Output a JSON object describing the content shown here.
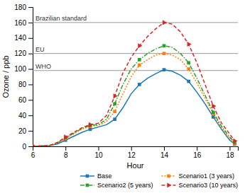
{
  "chart_data": {
    "type": "line",
    "xlabel": "Hour",
    "ylabel": "Ozone / ppb",
    "xlim": [
      6,
      18.5
    ],
    "ylim": [
      0,
      180
    ],
    "xticks": [
      6,
      8,
      10,
      12,
      14,
      16,
      18
    ],
    "yticks": [
      0,
      20,
      40,
      60,
      80,
      100,
      120,
      140,
      160,
      180
    ],
    "legend": "lower right",
    "reference_lines": [
      {
        "value": 160,
        "label": "Brazilian standard"
      },
      {
        "value": 120,
        "label": "EU"
      },
      {
        "value": 98,
        "label": "WHO"
      }
    ],
    "x": [
      6,
      7,
      7.5,
      8,
      8.5,
      9,
      9.5,
      10,
      10.5,
      11,
      11.5,
      12,
      12.5,
      13,
      13.5,
      14,
      14.5,
      15,
      15.5,
      16,
      16.5,
      17,
      17.5,
      18,
      18.3
    ],
    "series": [
      {
        "name": "Base",
        "line_style": "solid",
        "marker": "square",
        "values": [
          0,
          1,
          3,
          8,
          13,
          18,
          22,
          25,
          28,
          35,
          50,
          68,
          80,
          88,
          94,
          99,
          97,
          92,
          84,
          70,
          55,
          38,
          22,
          8,
          3
        ]
      },
      {
        "name": "Scenario1 (3 years)",
        "line_style": "dotted",
        "marker": "square",
        "values": [
          0,
          1,
          4,
          10,
          16,
          22,
          26,
          27,
          32,
          45,
          68,
          90,
          105,
          112,
          118,
          120,
          118,
          112,
          100,
          82,
          62,
          42,
          24,
          10,
          4
        ]
      },
      {
        "name": "Scenario2 (5 years)",
        "line_style": "dashdot",
        "marker": "square",
        "values": [
          0,
          1,
          4,
          11,
          17,
          23,
          27,
          28,
          35,
          55,
          80,
          100,
          112,
          120,
          126,
          130,
          128,
          120,
          108,
          88,
          66,
          44,
          26,
          12,
          5
        ]
      },
      {
        "name": "Scenario3 (10 years)",
        "line_style": "dashed",
        "marker": "triangle-right",
        "values": [
          0,
          1,
          5,
          12,
          18,
          24,
          28,
          30,
          40,
          65,
          95,
          115,
          130,
          142,
          152,
          160,
          158,
          148,
          132,
          108,
          80,
          52,
          30,
          16,
          7
        ]
      }
    ]
  }
}
